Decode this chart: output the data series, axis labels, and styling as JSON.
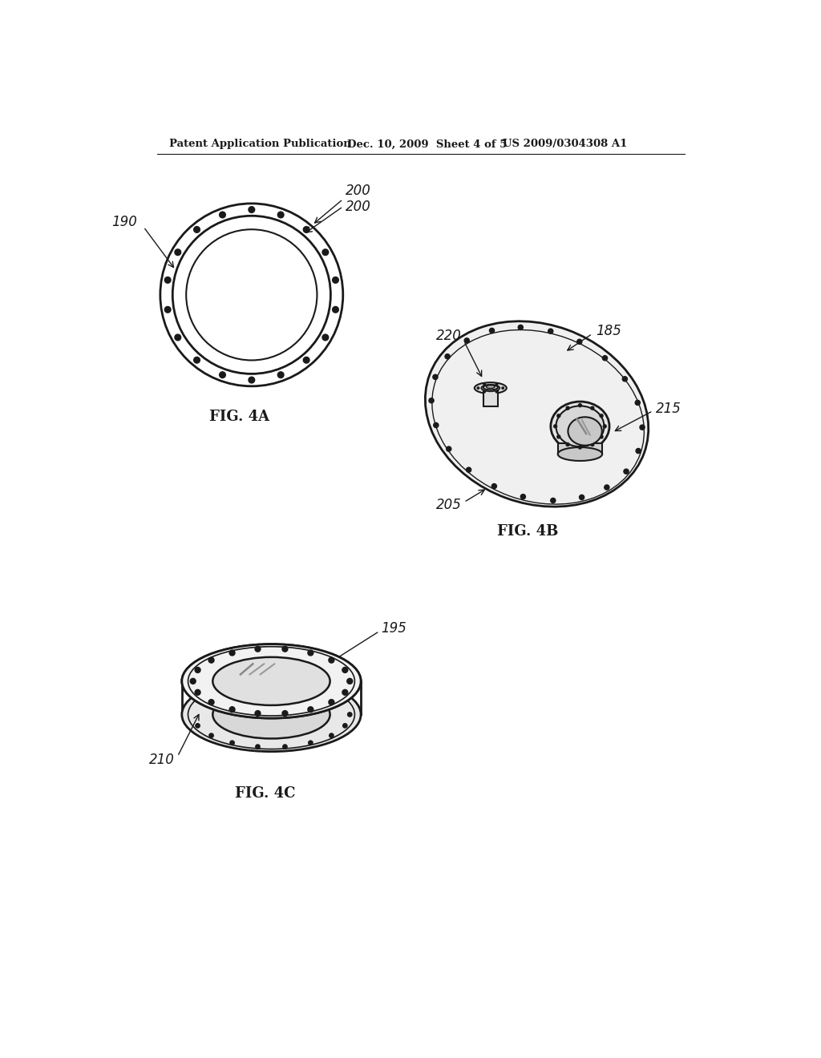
{
  "header_left": "Patent Application Publication",
  "header_mid": "Dec. 10, 2009  Sheet 4 of 5",
  "header_right": "US 2009/0304308 A1",
  "fig4a_label": "FIG. 4A",
  "fig4b_label": "FIG. 4B",
  "fig4c_label": "FIG. 4C",
  "bg_color": "#ffffff",
  "line_color": "#1a1a1a",
  "label_color": "#1a1a1a"
}
